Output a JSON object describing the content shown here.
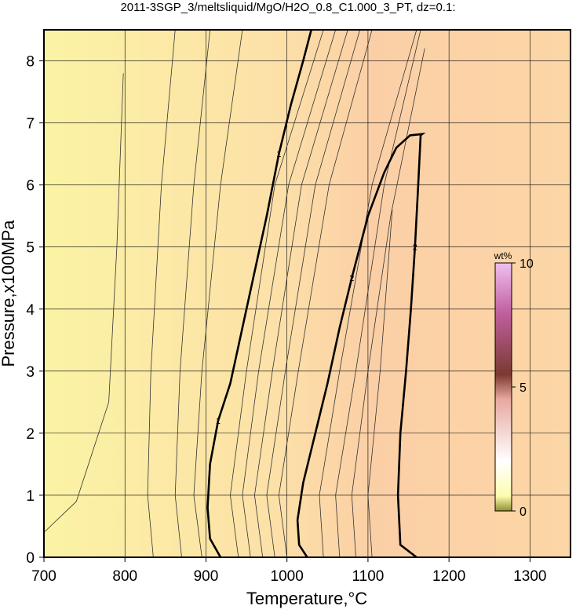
{
  "chart_data": {
    "type": "contour",
    "title": "2011-3SGP_3/meltsliquid/MgO/H2O_0.8_C1.000_3_PT, dz=0.1:",
    "x_label": "Temperature,°C",
    "y_label": "Pressure,x100MPa",
    "xlim": [
      700,
      1350
    ],
    "ylim": [
      0,
      8.5
    ],
    "xticks": [
      700,
      800,
      900,
      1000,
      1100,
      1200,
      1300
    ],
    "yticks": [
      0,
      1,
      2,
      3,
      4,
      5,
      6,
      7,
      8
    ],
    "grid": true,
    "contours": [
      {
        "level": 1,
        "x": [
          918,
          905,
          902,
          905,
          915,
          930,
          945,
          960,
          975,
          990,
          1005,
          1020,
          1030
        ],
        "y": [
          0,
          0.3,
          0.8,
          1.5,
          2.2,
          2.8,
          3.7,
          4.6,
          5.5,
          6.5,
          7.3,
          8.0,
          8.5
        ]
      },
      {
        "level": 2,
        "x": [
          1025,
          1015,
          1013,
          1020,
          1035,
          1050,
          1065,
          1080,
          1100,
          1120,
          1135,
          1152,
          1167,
          1165,
          1162,
          1158,
          1153,
          1147,
          1140,
          1137,
          1140,
          1160
        ],
        "y": [
          0,
          0.2,
          0.6,
          1.2,
          2.0,
          2.8,
          3.7,
          4.5,
          5.5,
          6.2,
          6.6,
          6.8,
          6.82,
          6.8,
          6.0,
          5.0,
          4.0,
          3.0,
          2.0,
          1.0,
          0.2,
          0
        ]
      }
    ],
    "thin_contours": [
      {
        "x": [
          700,
          740,
          780,
          790,
          798
        ],
        "y": [
          0.4,
          0.9,
          2.5,
          5,
          7.8
        ]
      },
      {
        "x": [
          835,
          828,
          832,
          845,
          862
        ],
        "y": [
          0,
          1,
          3,
          6,
          8.5
        ]
      },
      {
        "x": [
          870,
          862,
          868,
          885,
          905
        ],
        "y": [
          0,
          1,
          3,
          6,
          8.5
        ]
      },
      {
        "x": [
          895,
          885,
          895,
          918,
          945
        ],
        "y": [
          0,
          1,
          3,
          6,
          8.5
        ]
      },
      {
        "x": [
          940,
          930,
          950,
          985,
          1045
        ],
        "y": [
          0,
          1,
          3,
          6,
          8.5
        ]
      },
      {
        "x": [
          955,
          945,
          965,
          1002,
          1060
        ],
        "y": [
          0,
          1,
          3,
          6,
          8.5
        ]
      },
      {
        "x": [
          970,
          960,
          982,
          1018,
          1075
        ],
        "y": [
          0,
          1,
          3,
          6,
          8.5
        ]
      },
      {
        "x": [
          985,
          975,
          998,
          1035,
          1090
        ],
        "y": [
          0,
          1,
          3,
          6,
          8.5
        ]
      },
      {
        "x": [
          1000,
          990,
          1014,
          1052,
          1105
        ],
        "y": [
          0,
          1,
          3,
          6,
          8.5
        ]
      },
      {
        "x": [
          1045,
          1040,
          1065,
          1105,
          1160
        ],
        "y": [
          0,
          1,
          3,
          6,
          8.5
        ]
      },
      {
        "x": [
          1065,
          1060,
          1085,
          1120,
          1165
        ],
        "y": [
          0,
          1,
          3,
          6,
          8.5
        ]
      },
      {
        "x": [
          1085,
          1080,
          1100,
          1128,
          1170
        ],
        "y": [
          0,
          1,
          3,
          5.5,
          8.2
        ]
      },
      {
        "x": [
          1105,
          1100,
          1115,
          1130
        ],
        "y": [
          0,
          1,
          3,
          5.6
        ]
      }
    ],
    "colorbar": {
      "label": "wt%",
      "lim": [
        0,
        10
      ],
      "ticks": [
        0,
        5,
        10
      ]
    }
  }
}
